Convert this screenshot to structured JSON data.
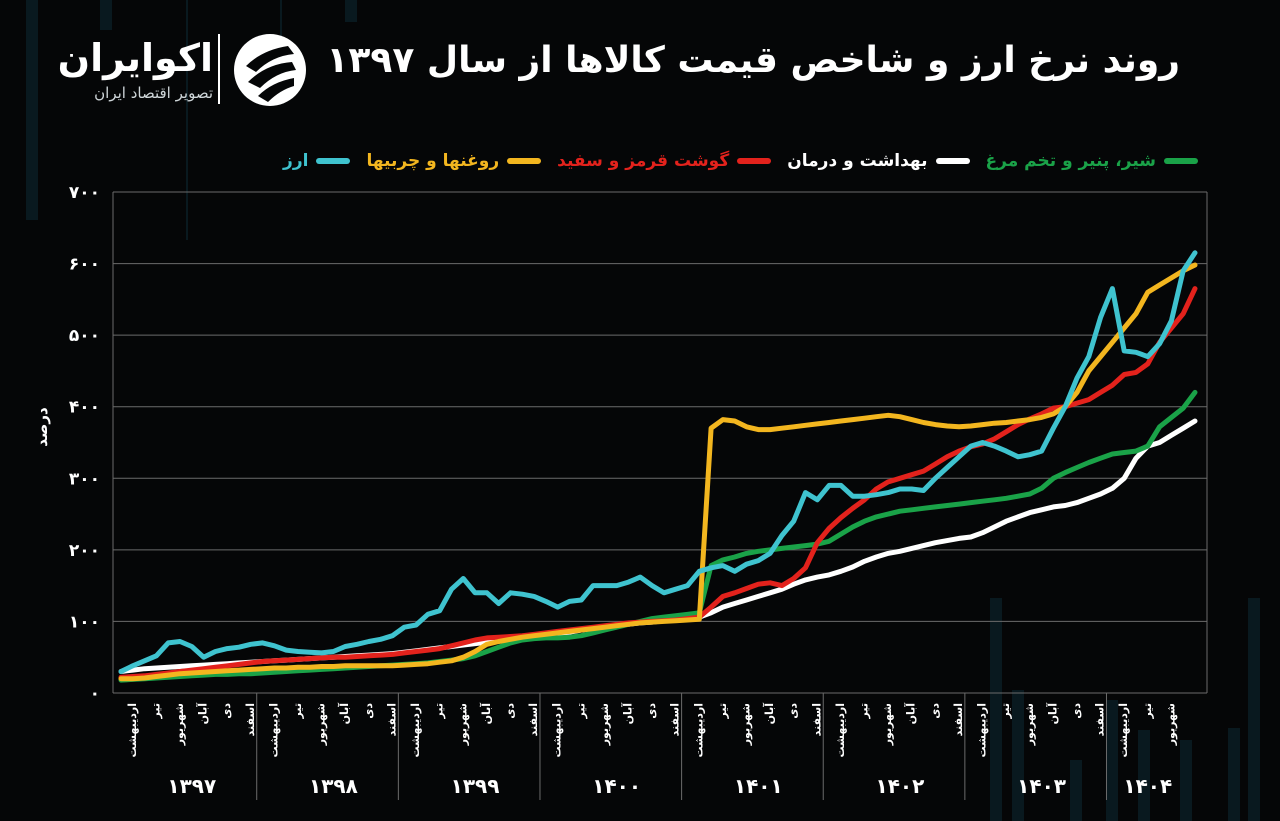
{
  "header": {
    "title": "روند نرخ ارز و شاخص قیمت کالاها از سال ۱۳۹۷"
  },
  "brand": {
    "name": "اکوایران",
    "tagline": "تصویر اقتصاد ایران"
  },
  "colors": {
    "background": "#050607",
    "grid": "#6b6b6b",
    "arz": "#3fc3cf",
    "roghan": "#f3b61f",
    "gosht": "#e3221c",
    "behdasht": "#ffffff",
    "shir": "#1aa248"
  },
  "chart_data": {
    "type": "line",
    "title": "روند نرخ ارز و شاخص قیمت کالاها از سال ۱۳۹۷",
    "ylabel": "درصد",
    "ylim": [
      0,
      700
    ],
    "yticks": [
      "۰",
      "۱۰۰",
      "۲۰۰",
      "۳۰۰",
      "۴۰۰",
      "۵۰۰",
      "۶۰۰",
      "۷۰۰"
    ],
    "grid": true,
    "legend_position": "top",
    "month_labels": [
      "اردیبهشت",
      "تیر",
      "شهریور",
      "آبان",
      "دی",
      "اسفند"
    ],
    "years": [
      "۱۳۹۷",
      "۱۳۹۸",
      "۱۳۹۹",
      "۱۴۰۰",
      "۱۴۰۱",
      "۱۴۰۲",
      "۱۴۰۳",
      "۱۴۰۴"
    ],
    "series": [
      {
        "name": "ارز",
        "color": "#3fc3cf",
        "values": [
          30,
          38,
          45,
          52,
          70,
          72,
          65,
          50,
          58,
          62,
          64,
          68,
          70,
          66,
          60,
          58,
          57,
          56,
          58,
          65,
          68,
          72,
          75,
          80,
          92,
          95,
          110,
          115,
          145,
          160,
          140,
          140,
          125,
          140,
          138,
          135,
          128,
          120,
          128,
          130,
          150,
          150,
          150,
          155,
          162,
          150,
          140,
          145,
          150,
          170,
          175,
          178,
          170,
          180,
          185,
          195,
          220,
          240,
          280,
          270,
          290,
          290,
          275,
          275,
          277,
          280,
          285,
          285,
          283,
          300,
          315,
          330,
          345,
          350,
          345,
          338,
          330,
          333,
          338,
          370,
          400,
          440,
          470,
          525,
          565,
          478,
          476,
          470,
          488,
          520,
          590,
          615
        ]
      },
      {
        "name": "روغنها و چربیها",
        "color": "#f3b61f",
        "values": [
          20,
          20,
          21,
          23,
          25,
          27,
          28,
          29,
          30,
          31,
          32,
          33,
          34,
          35,
          35,
          36,
          36,
          37,
          37,
          38,
          38,
          38,
          38,
          38,
          39,
          40,
          41,
          43,
          45,
          50,
          58,
          68,
          72,
          75,
          78,
          80,
          82,
          84,
          86,
          88,
          90,
          92,
          94,
          96,
          98,
          99,
          100,
          101,
          102,
          103,
          370,
          382,
          380,
          372,
          368,
          368,
          370,
          372,
          374,
          376,
          378,
          380,
          382,
          384,
          386,
          388,
          386,
          382,
          378,
          375,
          373,
          372,
          373,
          375,
          377,
          378,
          380,
          382,
          385,
          390,
          400,
          420,
          450,
          470,
          490,
          510,
          530,
          560,
          570,
          580,
          590,
          598
        ]
      },
      {
        "name": "گوشت قرمز و سفید",
        "color": "#e3221c",
        "values": [
          22,
          23,
          24,
          26,
          28,
          30,
          32,
          34,
          36,
          38,
          40,
          42,
          44,
          45,
          46,
          47,
          48,
          49,
          50,
          50,
          51,
          52,
          53,
          54,
          56,
          58,
          60,
          62,
          66,
          70,
          74,
          77,
          78,
          79,
          80,
          82,
          84,
          86,
          88,
          90,
          92,
          94,
          96,
          98,
          99,
          100,
          101,
          102,
          104,
          106,
          120,
          135,
          140,
          146,
          152,
          154,
          150,
          160,
          175,
          210,
          230,
          245,
          258,
          270,
          285,
          295,
          300,
          305,
          310,
          320,
          330,
          338,
          344,
          348,
          355,
          365,
          375,
          383,
          390,
          398,
          400,
          405,
          410,
          420,
          430,
          445,
          448,
          460,
          490,
          510,
          530,
          565
        ]
      },
      {
        "name": "بهداشت و درمان",
        "color": "#ffffff",
        "values": [
          30,
          32,
          34,
          35,
          36,
          37,
          38,
          39,
          40,
          41,
          42,
          43,
          44,
          45,
          46,
          47,
          48,
          49,
          50,
          51,
          52,
          53,
          54,
          55,
          57,
          59,
          61,
          63,
          65,
          67,
          69,
          71,
          73,
          75,
          77,
          79,
          81,
          83,
          85,
          88,
          90,
          92,
          94,
          96,
          98,
          99,
          101,
          103,
          104,
          106,
          112,
          120,
          125,
          130,
          135,
          140,
          145,
          152,
          158,
          162,
          165,
          170,
          176,
          184,
          190,
          195,
          198,
          202,
          206,
          210,
          213,
          216,
          218,
          224,
          232,
          240,
          246,
          252,
          256,
          260,
          262,
          266,
          272,
          278,
          286,
          300,
          328,
          345,
          350,
          360,
          370,
          380
        ]
      },
      {
        "name": "شیر، پنیر و تخم مرغ",
        "color": "#1aa248",
        "values": [
          18,
          19,
          20,
          21,
          22,
          23,
          24,
          25,
          26,
          26,
          27,
          27,
          28,
          29,
          30,
          31,
          32,
          33,
          34,
          35,
          36,
          37,
          38,
          39,
          40,
          41,
          42,
          44,
          46,
          48,
          52,
          58,
          64,
          70,
          74,
          76,
          77,
          77,
          78,
          80,
          84,
          88,
          92,
          96,
          100,
          104,
          106,
          108,
          110,
          112,
          178,
          186,
          190,
          195,
          198,
          200,
          202,
          204,
          206,
          208,
          212,
          222,
          232,
          240,
          246,
          250,
          254,
          256,
          258,
          260,
          262,
          264,
          266,
          268,
          270,
          272,
          275,
          278,
          286,
          300,
          308,
          315,
          322,
          328,
          334,
          336,
          338,
          345,
          372,
          385,
          398,
          420
        ]
      }
    ]
  }
}
